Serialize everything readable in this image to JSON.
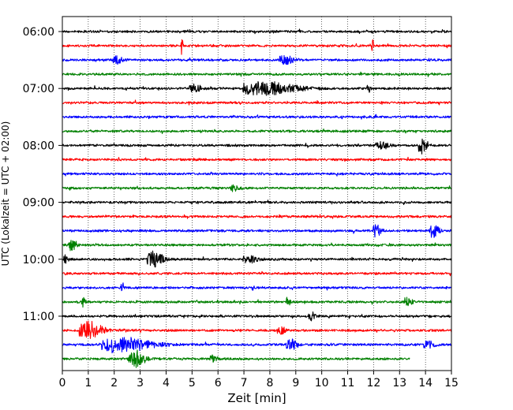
{
  "chart_data": {
    "type": "line",
    "title": "",
    "xlabel": "Zeit  [min]",
    "ylabel": "UTC (Lokalzeit = UTC + 02:00)",
    "xlim": [
      0,
      15
    ],
    "x_ticks": [
      "0",
      "1",
      "2",
      "3",
      "4",
      "5",
      "6",
      "7",
      "8",
      "9",
      "10",
      "11",
      "12",
      "13",
      "14",
      "15"
    ],
    "y_ticks": [
      "06:00",
      "07:00",
      "08:00",
      "09:00",
      "10:00",
      "11:00"
    ],
    "grid": "vertical dotted lines at each minute",
    "color_cycle": [
      "#000000",
      "#ff0000",
      "#0000ff",
      "#008000"
    ],
    "rows_per_hour": 4,
    "row_minutes": 15,
    "series": [
      {
        "start": "06:00",
        "end_min": 15,
        "color": "#000000",
        "events": []
      },
      {
        "start": "06:15",
        "end_min": 15,
        "color": "#ff0000",
        "events": [
          {
            "t": 4.6,
            "amp": 1.6,
            "dur": 0.1
          },
          {
            "t": 11.95,
            "amp": 1.3,
            "dur": 0.1
          }
        ]
      },
      {
        "start": "06:30",
        "end_min": 15,
        "color": "#0000ff",
        "events": [
          {
            "t": 2.1,
            "amp": 0.6,
            "dur": 0.5
          },
          {
            "t": 8.6,
            "amp": 0.6,
            "dur": 0.8
          }
        ]
      },
      {
        "start": "06:45",
        "end_min": 15,
        "color": "#008000",
        "events": []
      },
      {
        "start": "07:00",
        "end_min": 15,
        "color": "#000000",
        "events": [
          {
            "t": 5.1,
            "amp": 0.6,
            "dur": 0.7
          },
          {
            "t": 7.8,
            "amp": 1.0,
            "dur": 2.8
          },
          {
            "t": 11.8,
            "amp": 0.7,
            "dur": 0.2
          }
        ]
      },
      {
        "start": "07:15",
        "end_min": 15,
        "color": "#ff0000",
        "events": []
      },
      {
        "start": "07:30",
        "end_min": 15,
        "color": "#0000ff",
        "events": []
      },
      {
        "start": "07:45",
        "end_min": 15,
        "color": "#008000",
        "events": []
      },
      {
        "start": "08:00",
        "end_min": 15,
        "color": "#000000",
        "events": [
          {
            "t": 12.3,
            "amp": 0.5,
            "dur": 0.8
          },
          {
            "t": 13.85,
            "amp": 1.3,
            "dur": 0.4
          }
        ]
      },
      {
        "start": "08:15",
        "end_min": 15,
        "color": "#ff0000",
        "events": []
      },
      {
        "start": "08:30",
        "end_min": 15,
        "color": "#0000ff",
        "events": []
      },
      {
        "start": "08:45",
        "end_min": 15,
        "color": "#008000",
        "events": [
          {
            "t": 6.6,
            "amp": 0.5,
            "dur": 0.4
          }
        ]
      },
      {
        "start": "09:00",
        "end_min": 15,
        "color": "#000000",
        "events": []
      },
      {
        "start": "09:15",
        "end_min": 15,
        "color": "#ff0000",
        "events": []
      },
      {
        "start": "09:30",
        "end_min": 15,
        "color": "#0000ff",
        "events": [
          {
            "t": 12.1,
            "amp": 1.0,
            "dur": 0.4
          },
          {
            "t": 14.3,
            "amp": 1.0,
            "dur": 0.5
          }
        ]
      },
      {
        "start": "09:45",
        "end_min": 15,
        "color": "#008000",
        "events": [
          {
            "t": 0.35,
            "amp": 0.8,
            "dur": 0.4
          }
        ]
      },
      {
        "start": "10:00",
        "end_min": 15,
        "color": "#000000",
        "events": [
          {
            "t": 0.1,
            "amp": 0.6,
            "dur": 0.2
          },
          {
            "t": 3.5,
            "amp": 1.2,
            "dur": 0.8
          },
          {
            "t": 7.2,
            "amp": 0.5,
            "dur": 0.8
          }
        ]
      },
      {
        "start": "10:15",
        "end_min": 15,
        "color": "#ff0000",
        "events": []
      },
      {
        "start": "10:30",
        "end_min": 15,
        "color": "#0000ff",
        "events": [
          {
            "t": 2.3,
            "amp": 0.8,
            "dur": 0.2
          }
        ]
      },
      {
        "start": "10:45",
        "end_min": 15,
        "color": "#008000",
        "events": [
          {
            "t": 0.8,
            "amp": 0.9,
            "dur": 0.2
          },
          {
            "t": 8.7,
            "amp": 0.7,
            "dur": 0.2
          },
          {
            "t": 13.3,
            "amp": 0.8,
            "dur": 0.4
          }
        ]
      },
      {
        "start": "11:00",
        "end_min": 15,
        "color": "#000000",
        "events": [
          {
            "t": 9.6,
            "amp": 0.6,
            "dur": 0.4
          }
        ]
      },
      {
        "start": "11:15",
        "end_min": 15,
        "color": "#ff0000",
        "events": [
          {
            "t": 1.0,
            "amp": 1.4,
            "dur": 1.2
          },
          {
            "t": 8.4,
            "amp": 0.6,
            "dur": 0.5
          }
        ]
      },
      {
        "start": "11:30",
        "end_min": 15,
        "color": "#0000ff",
        "events": [
          {
            "t": 2.3,
            "amp": 1.1,
            "dur": 2.6
          },
          {
            "t": 8.8,
            "amp": 0.7,
            "dur": 0.6
          },
          {
            "t": 14.1,
            "amp": 0.6,
            "dur": 0.6
          }
        ]
      },
      {
        "start": "11:45",
        "end_min": 13.4,
        "color": "#008000",
        "events": [
          {
            "t": 2.8,
            "amp": 1.3,
            "dur": 0.9
          },
          {
            "t": 5.8,
            "amp": 0.5,
            "dur": 0.4
          }
        ]
      }
    ]
  }
}
